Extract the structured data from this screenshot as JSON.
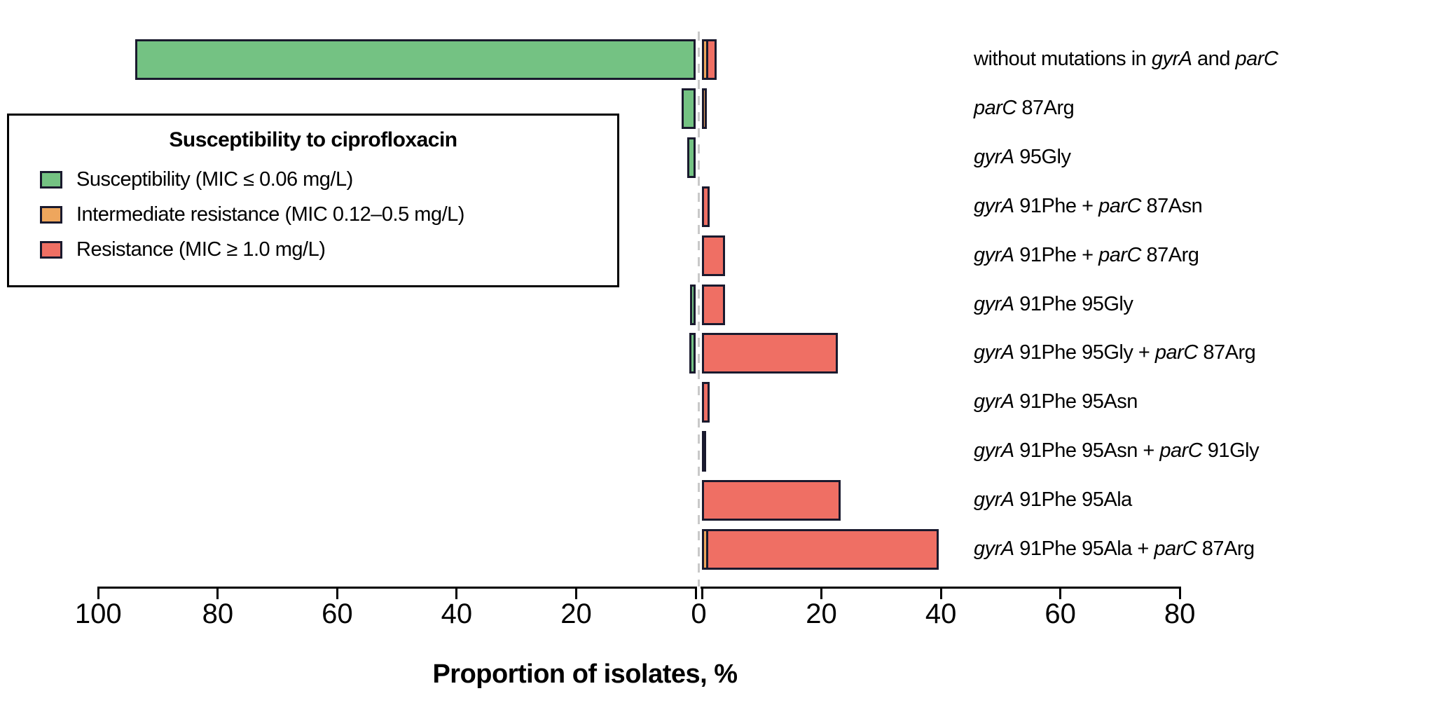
{
  "colors": {
    "susceptible": "#74c283",
    "intermediate": "#eea65d",
    "resistant": "#ef6f64",
    "bar_border": "#1a1a2e",
    "axis": "#000000",
    "zero_line": "#c9c9c9",
    "background": "#ffffff"
  },
  "legend": {
    "title": "Susceptibility to ciprofloxacin",
    "items": [
      {
        "key": "susceptible",
        "label": "Susceptibility (MIC ≤ 0.06 mg/L)"
      },
      {
        "key": "intermediate",
        "label": "Intermediate resistance (MIC 0.12–0.5 mg/L)"
      },
      {
        "key": "resistant",
        "label": "Resistance (MIC ≥ 1.0 mg/L)"
      }
    ]
  },
  "chart_data": {
    "type": "bar",
    "orientation": "diverging_horizontal",
    "xlabel": "Proportion of isolates, %",
    "ylabel": "",
    "grid": false,
    "legend_position": "upper-left-box",
    "left_axis_ticks": [
      100,
      80,
      60,
      40,
      20
    ],
    "right_axis_ticks": [
      20,
      40,
      60,
      80
    ],
    "zero_tick_label": "0",
    "xlim_left": [
      100,
      0
    ],
    "xlim_right": [
      0,
      80
    ],
    "categories": [
      "without mutations in gyrA and parC",
      "parC 87Arg",
      "gyrA 95Gly",
      "gyrA 91Phe + parC 87Asn",
      "gyrA 91Phe + parC 87Arg",
      "gyrA 91Phe 95Gly",
      "gyrA 91Phe 95Gly + parC 87Arg",
      "gyrA 91Phe 95Asn",
      "gyrA 91Phe 95Asn + parC 91Gly",
      "gyrA 91Phe 95Ala",
      "gyrA 91Phe 95Ala + parC 87Arg"
    ],
    "series": [
      {
        "name": "Susceptibility (MIC ≤ 0.06 mg/L)",
        "key": "susceptible",
        "side": "left",
        "values": [
          93.8,
          2.3,
          1.4,
          0,
          0,
          0.9,
          1.0,
          0,
          0,
          0,
          0
        ]
      },
      {
        "name": "Intermediate resistance (MIC 0.12–0.5 mg/L)",
        "key": "intermediate",
        "side": "right",
        "values": [
          1.1,
          0.8,
          0,
          0,
          0,
          0,
          0,
          0,
          0,
          0,
          1.0
        ]
      },
      {
        "name": "Resistance (MIC ≥ 1.0 mg/L)",
        "key": "resistant",
        "side": "right",
        "values": [
          1.7,
          0,
          0,
          1.3,
          3.9,
          3.9,
          22.7,
          1.3,
          0.7,
          23.2,
          39.0
        ]
      }
    ],
    "rows": [
      {
        "parts": [
          [
            "without mutations in ",
            false
          ],
          [
            "gyrA",
            true
          ],
          [
            " and ",
            false
          ],
          [
            "parC",
            true
          ]
        ]
      },
      {
        "parts": [
          [
            "parC",
            true
          ],
          [
            " 87Arg",
            false
          ]
        ]
      },
      {
        "parts": [
          [
            "gyrA",
            true
          ],
          [
            " 95Gly",
            false
          ]
        ]
      },
      {
        "parts": [
          [
            "gyrA",
            true
          ],
          [
            " 91Phe + ",
            false
          ],
          [
            "parC",
            true
          ],
          [
            " 87Asn",
            false
          ]
        ]
      },
      {
        "parts": [
          [
            "gyrA",
            true
          ],
          [
            " 91Phe + ",
            false
          ],
          [
            "parC",
            true
          ],
          [
            " 87Arg",
            false
          ]
        ]
      },
      {
        "parts": [
          [
            "gyrA",
            true
          ],
          [
            " 91Phe 95Gly",
            false
          ]
        ]
      },
      {
        "parts": [
          [
            "gyrA",
            true
          ],
          [
            " 91Phe 95Gly + ",
            false
          ],
          [
            "parC",
            true
          ],
          [
            " 87Arg",
            false
          ]
        ]
      },
      {
        "parts": [
          [
            "gyrA",
            true
          ],
          [
            " 91Phe 95Asn",
            false
          ]
        ]
      },
      {
        "parts": [
          [
            "gyrA",
            true
          ],
          [
            " 91Phe 95Asn + ",
            false
          ],
          [
            "parC",
            true
          ],
          [
            " 91Gly",
            false
          ]
        ]
      },
      {
        "parts": [
          [
            "gyrA",
            true
          ],
          [
            " 91Phe 95Ala",
            false
          ]
        ]
      },
      {
        "parts": [
          [
            "gyrA",
            true
          ],
          [
            " 91Phe 95Ala + ",
            false
          ],
          [
            "parC",
            true
          ],
          [
            " 87Arg",
            false
          ]
        ]
      }
    ]
  }
}
